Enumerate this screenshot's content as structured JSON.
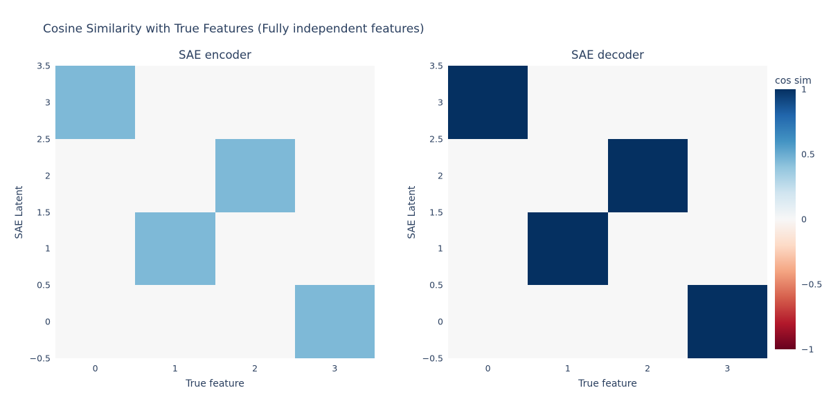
{
  "main": {
    "title": "Cosine Similarity with True Features (Fully independent features)"
  },
  "colors": {
    "text": "#2a3f5f",
    "paper_background": "#ffffff",
    "zero_cell": "#f7f7f7",
    "encoder_cell": "#7eb8d7",
    "decoder_cell": "#053061"
  },
  "chart_data": [
    {
      "type": "heatmap",
      "title": "SAE encoder",
      "xlabel": "True feature",
      "ylabel": "SAE Latent",
      "x": [
        0,
        1,
        2,
        3
      ],
      "y": [
        0,
        1,
        2,
        3
      ],
      "z_rows_y0_to_y3": [
        [
          0,
          0,
          0,
          0.45
        ],
        [
          0,
          0.45,
          0,
          0
        ],
        [
          0,
          0,
          0.45,
          0
        ],
        [
          0.45,
          0,
          0,
          0
        ]
      ],
      "xlim": [
        -0.5,
        3.5
      ],
      "ylim": [
        -0.5,
        3.5
      ],
      "xticks": [
        "0",
        "1",
        "2",
        "3"
      ],
      "yticks_top_to_bottom": [
        "3.5",
        "3",
        "2.5",
        "2",
        "1.5",
        "1",
        "0.5",
        "0",
        "−0.5"
      ],
      "grid": false,
      "legend": "none"
    },
    {
      "type": "heatmap",
      "title": "SAE decoder",
      "xlabel": "True feature",
      "ylabel": "SAE Latent",
      "x": [
        0,
        1,
        2,
        3
      ],
      "y": [
        0,
        1,
        2,
        3
      ],
      "z_rows_y0_to_y3": [
        [
          0,
          0,
          0,
          1
        ],
        [
          0,
          1,
          0,
          0
        ],
        [
          0,
          0,
          1,
          0
        ],
        [
          1,
          0,
          0,
          0
        ]
      ],
      "xlim": [
        -0.5,
        3.5
      ],
      "ylim": [
        -0.5,
        3.5
      ],
      "xticks": [
        "0",
        "1",
        "2",
        "3"
      ],
      "yticks_top_to_bottom": [
        "3.5",
        "3",
        "2.5",
        "2",
        "1.5",
        "1",
        "0.5",
        "0",
        "−0.5"
      ],
      "grid": false,
      "legend": "none"
    },
    {
      "type": "colorbar",
      "title": "cos sim",
      "ticks_top_to_bottom": [
        "1",
        "0.5",
        "0",
        "−0.5",
        "−1"
      ],
      "zmin": -1,
      "zmax": 1,
      "colorscale_rdbu": [
        [
          0.0,
          "#67001f"
        ],
        [
          0.1,
          "#b2182b"
        ],
        [
          0.2,
          "#d6604d"
        ],
        [
          0.3,
          "#f4a582"
        ],
        [
          0.4,
          "#fddbc7"
        ],
        [
          0.5,
          "#f7f7f7"
        ],
        [
          0.6,
          "#d1e5f0"
        ],
        [
          0.7,
          "#92c5de"
        ],
        [
          0.8,
          "#4393c3"
        ],
        [
          0.9,
          "#2166ac"
        ],
        [
          1.0,
          "#053061"
        ]
      ]
    }
  ]
}
